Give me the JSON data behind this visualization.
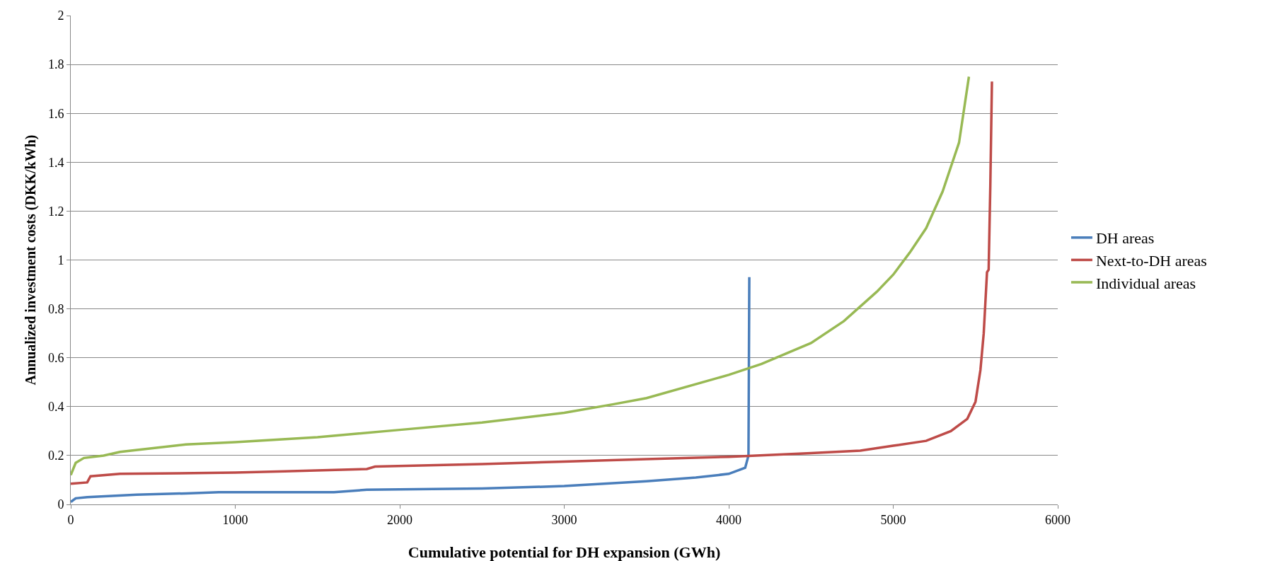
{
  "chart_data": {
    "type": "line",
    "xlabel": "Cumulative potential for DH expansion (GWh)",
    "ylabel": "Annualized investment costs (DKK/kWh)",
    "xlim": [
      0,
      6000
    ],
    "xticks": [
      0,
      1000,
      2000,
      3000,
      4000,
      5000,
      6000
    ],
    "ylim": [
      0,
      2
    ],
    "yticks": [
      0,
      0.2,
      0.4,
      0.6,
      0.8,
      1,
      1.2,
      1.4,
      1.6,
      1.8,
      2
    ],
    "grid": "y",
    "legend": "right",
    "marker": "none",
    "line_style": "solid",
    "series": [
      {
        "name": "DH areas",
        "color": "#4a7ebb",
        "x": [
          0,
          30,
          100,
          400,
          700,
          900,
          1600,
          1800,
          2500,
          3000,
          3500,
          3800,
          4000,
          4100,
          4120,
          4125
        ],
        "values": [
          0.01,
          0.025,
          0.03,
          0.04,
          0.045,
          0.05,
          0.05,
          0.06,
          0.065,
          0.075,
          0.095,
          0.11,
          0.125,
          0.15,
          0.2,
          0.93
        ]
      },
      {
        "name": "Next-to-DH areas",
        "color": "#be4b48",
        "x": [
          0,
          100,
          120,
          300,
          1000,
          1300,
          1800,
          1850,
          2500,
          3000,
          3500,
          4000,
          4500,
          4800,
          5000,
          5200,
          5350,
          5450,
          5500,
          5530,
          5550,
          5570,
          5580,
          5590,
          5600
        ],
        "values": [
          0.085,
          0.09,
          0.115,
          0.125,
          0.13,
          0.135,
          0.145,
          0.155,
          0.165,
          0.175,
          0.185,
          0.195,
          0.21,
          0.22,
          0.24,
          0.26,
          0.3,
          0.35,
          0.42,
          0.55,
          0.7,
          0.95,
          0.96,
          1.3,
          1.73
        ]
      },
      {
        "name": "Individual areas",
        "color": "#98b954",
        "x": [
          0,
          30,
          80,
          200,
          300,
          500,
          700,
          1000,
          1500,
          2000,
          2500,
          3000,
          3300,
          3500,
          4000,
          4200,
          4500,
          4700,
          4900,
          5000,
          5100,
          5200,
          5300,
          5400,
          5460
        ],
        "values": [
          0.12,
          0.17,
          0.19,
          0.2,
          0.215,
          0.23,
          0.245,
          0.255,
          0.275,
          0.305,
          0.335,
          0.375,
          0.41,
          0.435,
          0.53,
          0.575,
          0.66,
          0.75,
          0.87,
          0.94,
          1.03,
          1.13,
          1.28,
          1.48,
          1.75
        ]
      }
    ]
  }
}
